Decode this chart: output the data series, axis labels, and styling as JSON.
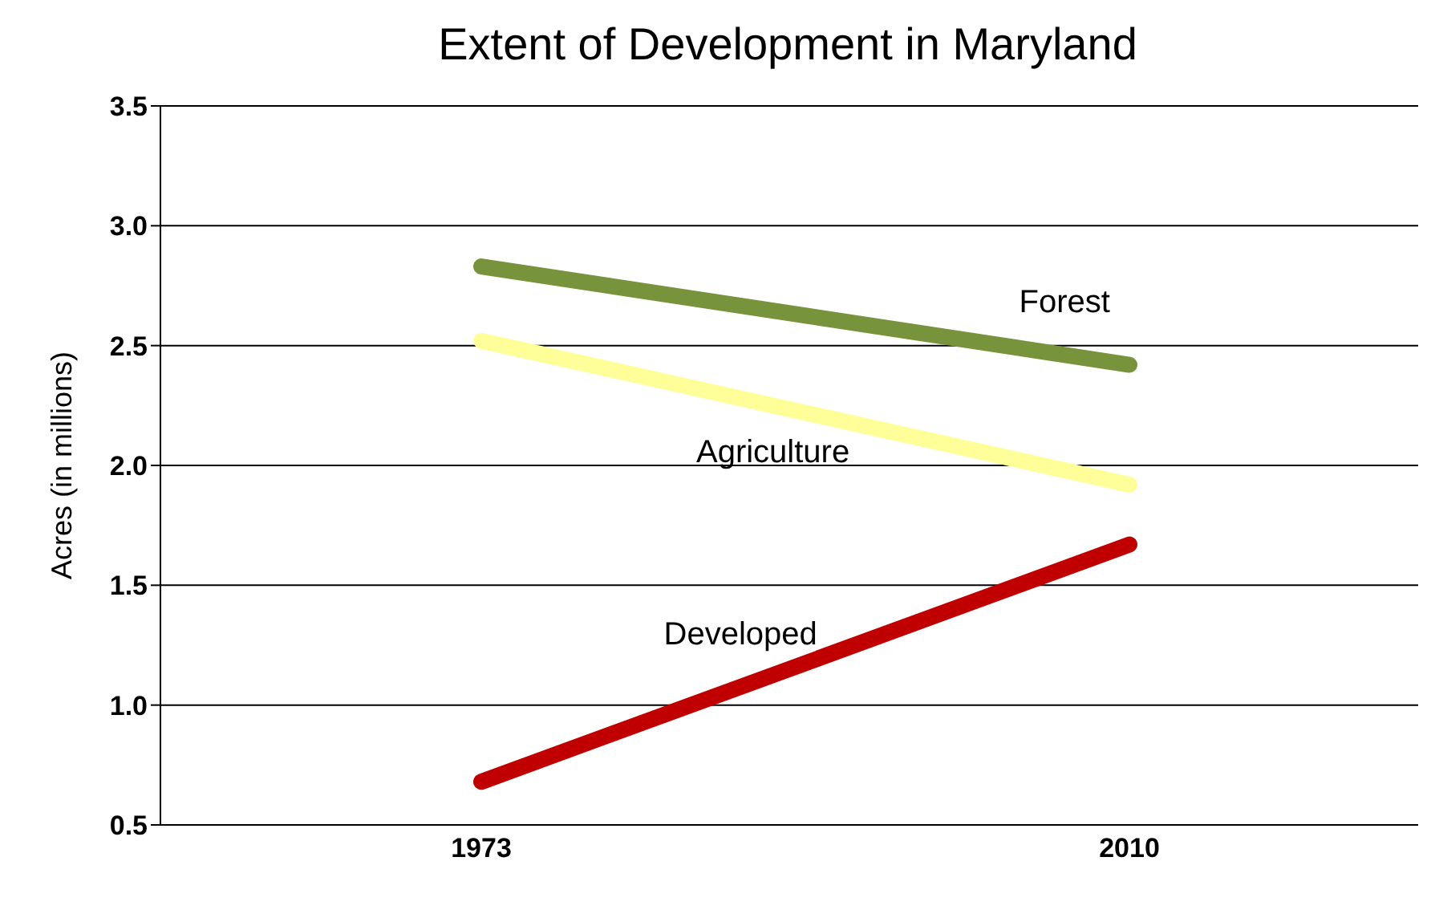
{
  "chart_data": {
    "type": "line",
    "title": "Extent of Development in Maryland",
    "ylabel": "Acres  (in millions)",
    "categories": [
      "1973",
      "2010"
    ],
    "series": [
      {
        "name": "Forest",
        "color": "#77933c",
        "values": [
          2.83,
          2.42
        ]
      },
      {
        "name": "Agriculture",
        "color": "#ffff99",
        "values": [
          2.52,
          1.92
        ]
      },
      {
        "name": "Developed",
        "color": "#c00000",
        "values": [
          0.68,
          1.67
        ]
      }
    ],
    "ylim": [
      0.5,
      3.5
    ],
    "yticks": [
      {
        "value": 0.5,
        "label": "0.5"
      },
      {
        "value": 1,
        "label": "1.0"
      },
      {
        "value": 1.5,
        "label": "1.5"
      },
      {
        "value": 2,
        "label": "2.0"
      },
      {
        "value": 2.5,
        "label": "2.5"
      },
      {
        "value": 3,
        "label": "3.0"
      },
      {
        "value": 3.5,
        "label": "3.5"
      }
    ],
    "grid": "y",
    "legend": false,
    "marker": "none",
    "line_style": "solid"
  }
}
